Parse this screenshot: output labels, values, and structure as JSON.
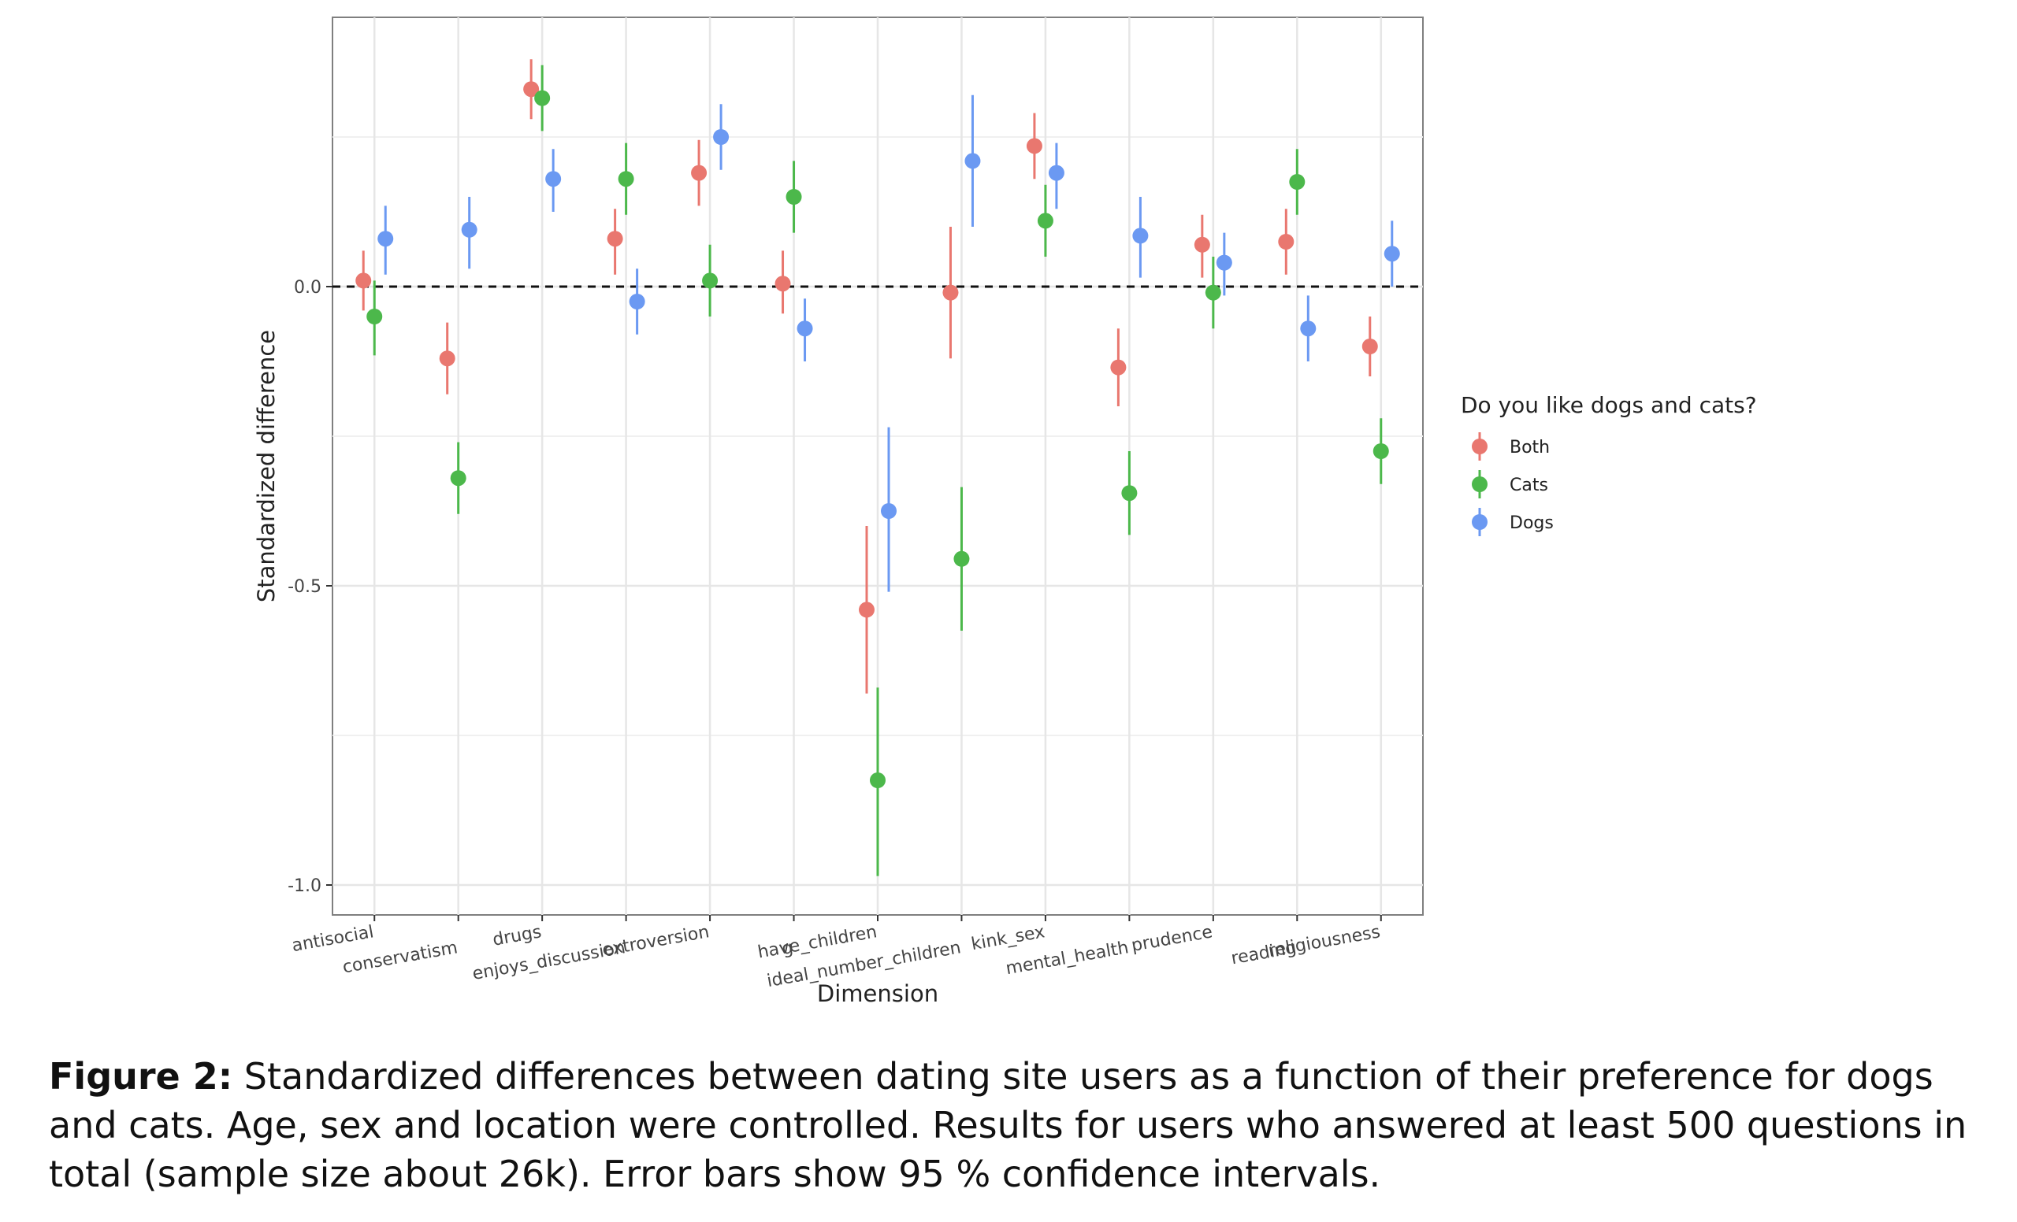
{
  "chart_data": {
    "type": "scatter",
    "subtype": "point-with-error-bars",
    "categories": [
      "antisocial",
      "conservatism",
      "drugs",
      "enjoys_discussion",
      "extroversion",
      "g",
      "have_children",
      "ideal_number_children",
      "kink_sex",
      "mental_health",
      "prudence",
      "reading",
      "religiousness"
    ],
    "series": [
      {
        "name": "Both",
        "color": "#E9776F",
        "values": [
          0.01,
          -0.12,
          0.33,
          0.08,
          0.19,
          0.005,
          -0.54,
          -0.01,
          0.235,
          -0.135,
          0.07,
          0.075,
          -0.1
        ],
        "lower": [
          -0.04,
          -0.18,
          0.28,
          0.02,
          0.135,
          -0.045,
          -0.68,
          -0.12,
          0.18,
          -0.2,
          0.015,
          0.02,
          -0.15
        ],
        "upper": [
          0.06,
          -0.06,
          0.38,
          0.13,
          0.245,
          0.06,
          -0.4,
          0.1,
          0.29,
          -0.07,
          0.12,
          0.13,
          -0.05
        ]
      },
      {
        "name": "Cats",
        "color": "#4CB84B",
        "values": [
          -0.05,
          -0.32,
          0.315,
          0.18,
          0.01,
          0.15,
          -0.825,
          -0.455,
          0.11,
          -0.345,
          -0.01,
          0.175,
          -0.275
        ],
        "lower": [
          -0.115,
          -0.38,
          0.26,
          0.12,
          -0.05,
          0.09,
          -0.985,
          -0.575,
          0.05,
          -0.415,
          -0.07,
          0.12,
          -0.33
        ],
        "upper": [
          0.01,
          -0.26,
          0.37,
          0.24,
          0.07,
          0.21,
          -0.67,
          -0.335,
          0.17,
          -0.275,
          0.05,
          0.23,
          -0.22
        ]
      },
      {
        "name": "Dogs",
        "color": "#6B99F2",
        "values": [
          0.08,
          0.095,
          0.18,
          -0.025,
          0.25,
          -0.07,
          -0.375,
          0.21,
          0.19,
          0.085,
          0.04,
          -0.07,
          0.055
        ],
        "lower": [
          0.02,
          0.03,
          0.125,
          -0.08,
          0.195,
          -0.125,
          -0.51,
          0.1,
          0.13,
          0.015,
          -0.015,
          -0.125,
          0.0
        ],
        "upper": [
          0.135,
          0.15,
          0.23,
          0.03,
          0.305,
          -0.02,
          -0.235,
          0.32,
          0.24,
          0.15,
          0.09,
          -0.015,
          0.11
        ]
      }
    ],
    "xlabel": "Dimension",
    "ylabel": "Standardized difference",
    "ylim": [
      -1.05,
      0.45
    ],
    "yticks": [
      0.0,
      -0.5,
      -1.0
    ],
    "ytick_labels": [
      "0.0",
      "-0.5",
      "-1.0"
    ],
    "reference_line": 0.0,
    "legend_title": "Do you like dogs and cats?",
    "legend_position": "right",
    "grid": true
  },
  "caption": {
    "label": "Figure 2:",
    "text": "Standardized differences between dating site users as a function of their preference for dogs and cats. Age, sex and location were controlled. Results for users who answered at least 500 questions in total (sample size about 26k). Error bars show 95 % confidence intervals."
  }
}
